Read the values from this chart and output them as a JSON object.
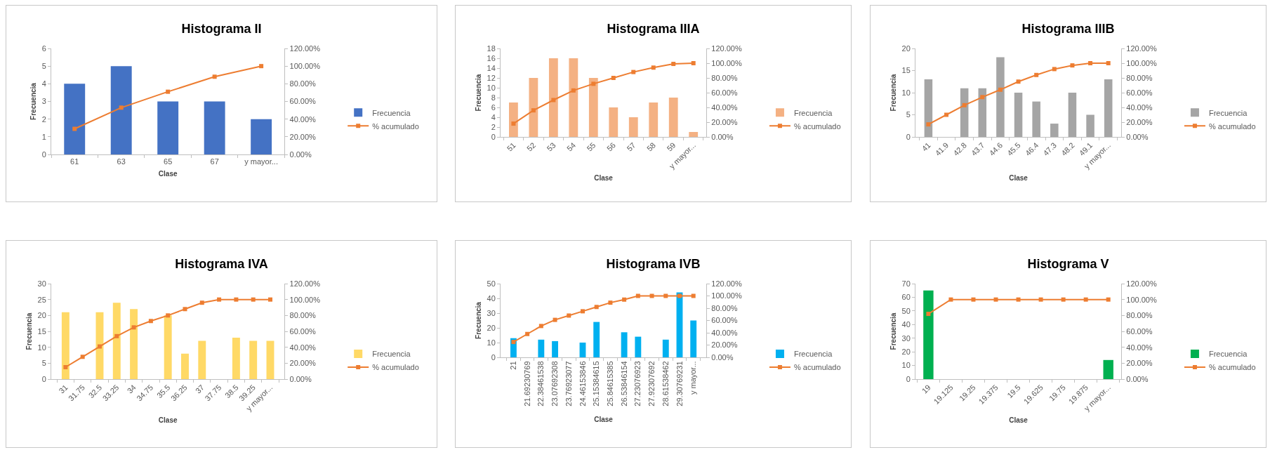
{
  "chart_data": [
    {
      "type": "bar",
      "title": "Histograma II",
      "xlabel": "Clase",
      "ylabel": "Frecuencia",
      "categories": [
        "61",
        "63",
        "65",
        "67",
        "y mayor..."
      ],
      "series": [
        {
          "name": "Frecuencia",
          "color": "#4472c4",
          "values": [
            4,
            5,
            3,
            3,
            2
          ]
        },
        {
          "name": "% acumulado",
          "type": "line",
          "axis": "y2",
          "color": "#ed7d31",
          "values": [
            29,
            53,
            71,
            88,
            100
          ]
        }
      ],
      "ylim": [
        0,
        6
      ],
      "yticks": [
        0,
        1,
        2,
        3,
        4,
        5,
        6
      ],
      "y2lim": [
        0,
        120
      ],
      "y2ticks": [
        {
          "value": 0,
          "label": "0.00%"
        },
        {
          "value": 20,
          "label": "20.00%"
        },
        {
          "value": 40,
          "label": "40.00%"
        },
        {
          "value": 60,
          "label": "60.00%"
        },
        {
          "value": 80,
          "label": "80.00%"
        },
        {
          "value": 100,
          "label": "100.00%"
        },
        {
          "value": 120,
          "label": "120.00%"
        }
      ],
      "legend": "right",
      "marker": "square"
    },
    {
      "type": "bar",
      "title": "Histograma IIIA",
      "xlabel": "Clase",
      "ylabel": "Frecuencia",
      "categories": [
        "51",
        "52",
        "53",
        "54",
        "55",
        "56",
        "57",
        "58",
        "59",
        "y mayor..."
      ],
      "series": [
        {
          "name": "Frecuencia",
          "color": "#f4b183",
          "values": [
            7,
            12,
            16,
            16,
            12,
            6,
            4,
            7,
            8,
            1
          ]
        },
        {
          "name": "% acumulado",
          "type": "line",
          "axis": "y2",
          "color": "#ed7d31",
          "values": [
            18,
            36,
            50,
            63,
            72,
            80,
            88,
            94,
            99,
            100
          ]
        }
      ],
      "ylim": [
        0,
        18
      ],
      "yticks": [
        0,
        2,
        4,
        6,
        8,
        10,
        12,
        14,
        16,
        18
      ],
      "y2lim": [
        0,
        120
      ],
      "y2ticks": [
        {
          "value": 0,
          "label": "0.00%"
        },
        {
          "value": 20,
          "label": "20.00%"
        },
        {
          "value": 40,
          "label": "40.00%"
        },
        {
          "value": 60,
          "label": "60.00%"
        },
        {
          "value": 80,
          "label": "80.00%"
        },
        {
          "value": 100,
          "label": "100.00%"
        },
        {
          "value": 120,
          "label": "120.00%"
        }
      ],
      "legend": "right",
      "marker": "square"
    },
    {
      "type": "bar",
      "title": "Histograma IIIB",
      "xlabel": "Clase",
      "ylabel": "Frecuencia",
      "categories": [
        "41",
        "41.9",
        "42.8",
        "43.7",
        "44.6",
        "45.5",
        "46.4",
        "47.3",
        "48.2",
        "49.1",
        "y mayor..."
      ],
      "series": [
        {
          "name": "Frecuencia",
          "color": "#a5a5a5",
          "values": [
            13,
            0,
            11,
            11,
            18,
            10,
            8,
            3,
            10,
            5,
            13
          ]
        },
        {
          "name": "% acumulado",
          "type": "line",
          "axis": "y2",
          "color": "#ed7d31",
          "values": [
            17,
            30,
            43,
            54,
            64,
            75,
            84,
            92,
            97,
            100,
            100
          ]
        }
      ],
      "ylim": [
        0,
        20
      ],
      "yticks": [
        0,
        5,
        10,
        15,
        20
      ],
      "y2lim": [
        0,
        120
      ],
      "y2ticks": [
        {
          "value": 0,
          "label": "0.00%"
        },
        {
          "value": 20,
          "label": "20.00%"
        },
        {
          "value": 40,
          "label": "40.00%"
        },
        {
          "value": 60,
          "label": "60.00%"
        },
        {
          "value": 80,
          "label": "80.00%"
        },
        {
          "value": 100,
          "label": "100.00%"
        },
        {
          "value": 120,
          "label": "120.00%"
        }
      ],
      "legend": "right",
      "marker": "square"
    },
    {
      "type": "bar",
      "title": "Histograma IVA",
      "xlabel": "Clase",
      "ylabel": "Frecuencia",
      "categories": [
        "31",
        "31.75",
        "32.5",
        "33.25",
        "34",
        "34.75",
        "35.5",
        "36.25",
        "37",
        "37.75",
        "38.5",
        "39.25",
        "y mayor..."
      ],
      "series": [
        {
          "name": "Frecuencia",
          "color": "#ffd966",
          "values": [
            21,
            0,
            21,
            24,
            22,
            0,
            20,
            8,
            12,
            0,
            13,
            12,
            12
          ]
        },
        {
          "name": "% acumulado",
          "type": "line",
          "axis": "y2",
          "color": "#ed7d31",
          "values": [
            15,
            28,
            41,
            54,
            65,
            73,
            80,
            88,
            96,
            100,
            100,
            100,
            100
          ]
        }
      ],
      "ylim": [
        0,
        30
      ],
      "yticks": [
        0,
        5,
        10,
        15,
        20,
        25,
        30
      ],
      "y2lim": [
        0,
        120
      ],
      "y2ticks": [
        {
          "value": 0,
          "label": "0.00%"
        },
        {
          "value": 20,
          "label": "20.00%"
        },
        {
          "value": 40,
          "label": "40.00%"
        },
        {
          "value": 60,
          "label": "60.00%"
        },
        {
          "value": 80,
          "label": "80.00%"
        },
        {
          "value": 100,
          "label": "100.00%"
        },
        {
          "value": 120,
          "label": "120.00%"
        }
      ],
      "legend": "right",
      "marker": "square"
    },
    {
      "type": "bar",
      "title": "Histograma IVB",
      "xlabel": "Clase",
      "ylabel": "Frecuencia",
      "categories": [
        "21",
        "21.69230769",
        "22.38461538",
        "23.07692308",
        "23.76923077",
        "24.46153846",
        "25.15384615",
        "25.84615385",
        "26.53846154",
        "27.23076923",
        "27.92307692",
        "28.61538462",
        "29.30769231",
        "y mayor..."
      ],
      "series": [
        {
          "name": "Frecuencia",
          "color": "#00b0f0",
          "values": [
            13,
            0,
            12,
            11,
            0,
            10,
            24,
            0,
            17,
            14,
            0,
            12,
            44,
            25
          ]
        },
        {
          "name": "% acumulado",
          "type": "line",
          "axis": "y2",
          "color": "#ed7d31",
          "values": [
            25,
            38,
            51,
            61,
            68,
            75,
            82,
            89,
            94,
            100,
            100,
            100,
            100,
            100
          ]
        }
      ],
      "ylim": [
        0,
        50
      ],
      "yticks": [
        0,
        10,
        20,
        30,
        40,
        50
      ],
      "y2lim": [
        0,
        120
      ],
      "y2ticks": [
        {
          "value": 0,
          "label": "0.00%"
        },
        {
          "value": 20,
          "label": "20.00%"
        },
        {
          "value": 40,
          "label": "40.00%"
        },
        {
          "value": 60,
          "label": "60.00%"
        },
        {
          "value": 80,
          "label": "80.00%"
        },
        {
          "value": 100,
          "label": "100.00%"
        },
        {
          "value": 120,
          "label": "120.00%"
        }
      ],
      "legend": "right",
      "marker": "square"
    },
    {
      "type": "bar",
      "title": "Histograma V",
      "xlabel": "Clase",
      "ylabel": "Frecuencia",
      "categories": [
        "19",
        "19.125",
        "19.25",
        "19.375",
        "19.5",
        "19.625",
        "19.75",
        "19.875",
        "y mayor..."
      ],
      "series": [
        {
          "name": "Frecuencia",
          "color": "#00b050",
          "values": [
            65,
            0,
            0,
            0,
            0,
            0,
            0,
            0,
            14
          ]
        },
        {
          "name": "% acumulado",
          "type": "line",
          "axis": "y2",
          "color": "#ed7d31",
          "values": [
            82,
            100,
            100,
            100,
            100,
            100,
            100,
            100,
            100
          ]
        }
      ],
      "ylim": [
        0,
        70
      ],
      "yticks": [
        0,
        10,
        20,
        30,
        40,
        50,
        60,
        70
      ],
      "y2lim": [
        0,
        120
      ],
      "y2ticks": [
        {
          "value": 0,
          "label": "0.00%"
        },
        {
          "value": 20,
          "label": "20.00%"
        },
        {
          "value": 40,
          "label": "40.00%"
        },
        {
          "value": 60,
          "label": "60.00%"
        },
        {
          "value": 80,
          "label": "80.00%"
        },
        {
          "value": 100,
          "label": "100.00%"
        },
        {
          "value": 120,
          "label": "120.00%"
        }
      ],
      "legend": "right",
      "marker": "square"
    }
  ]
}
